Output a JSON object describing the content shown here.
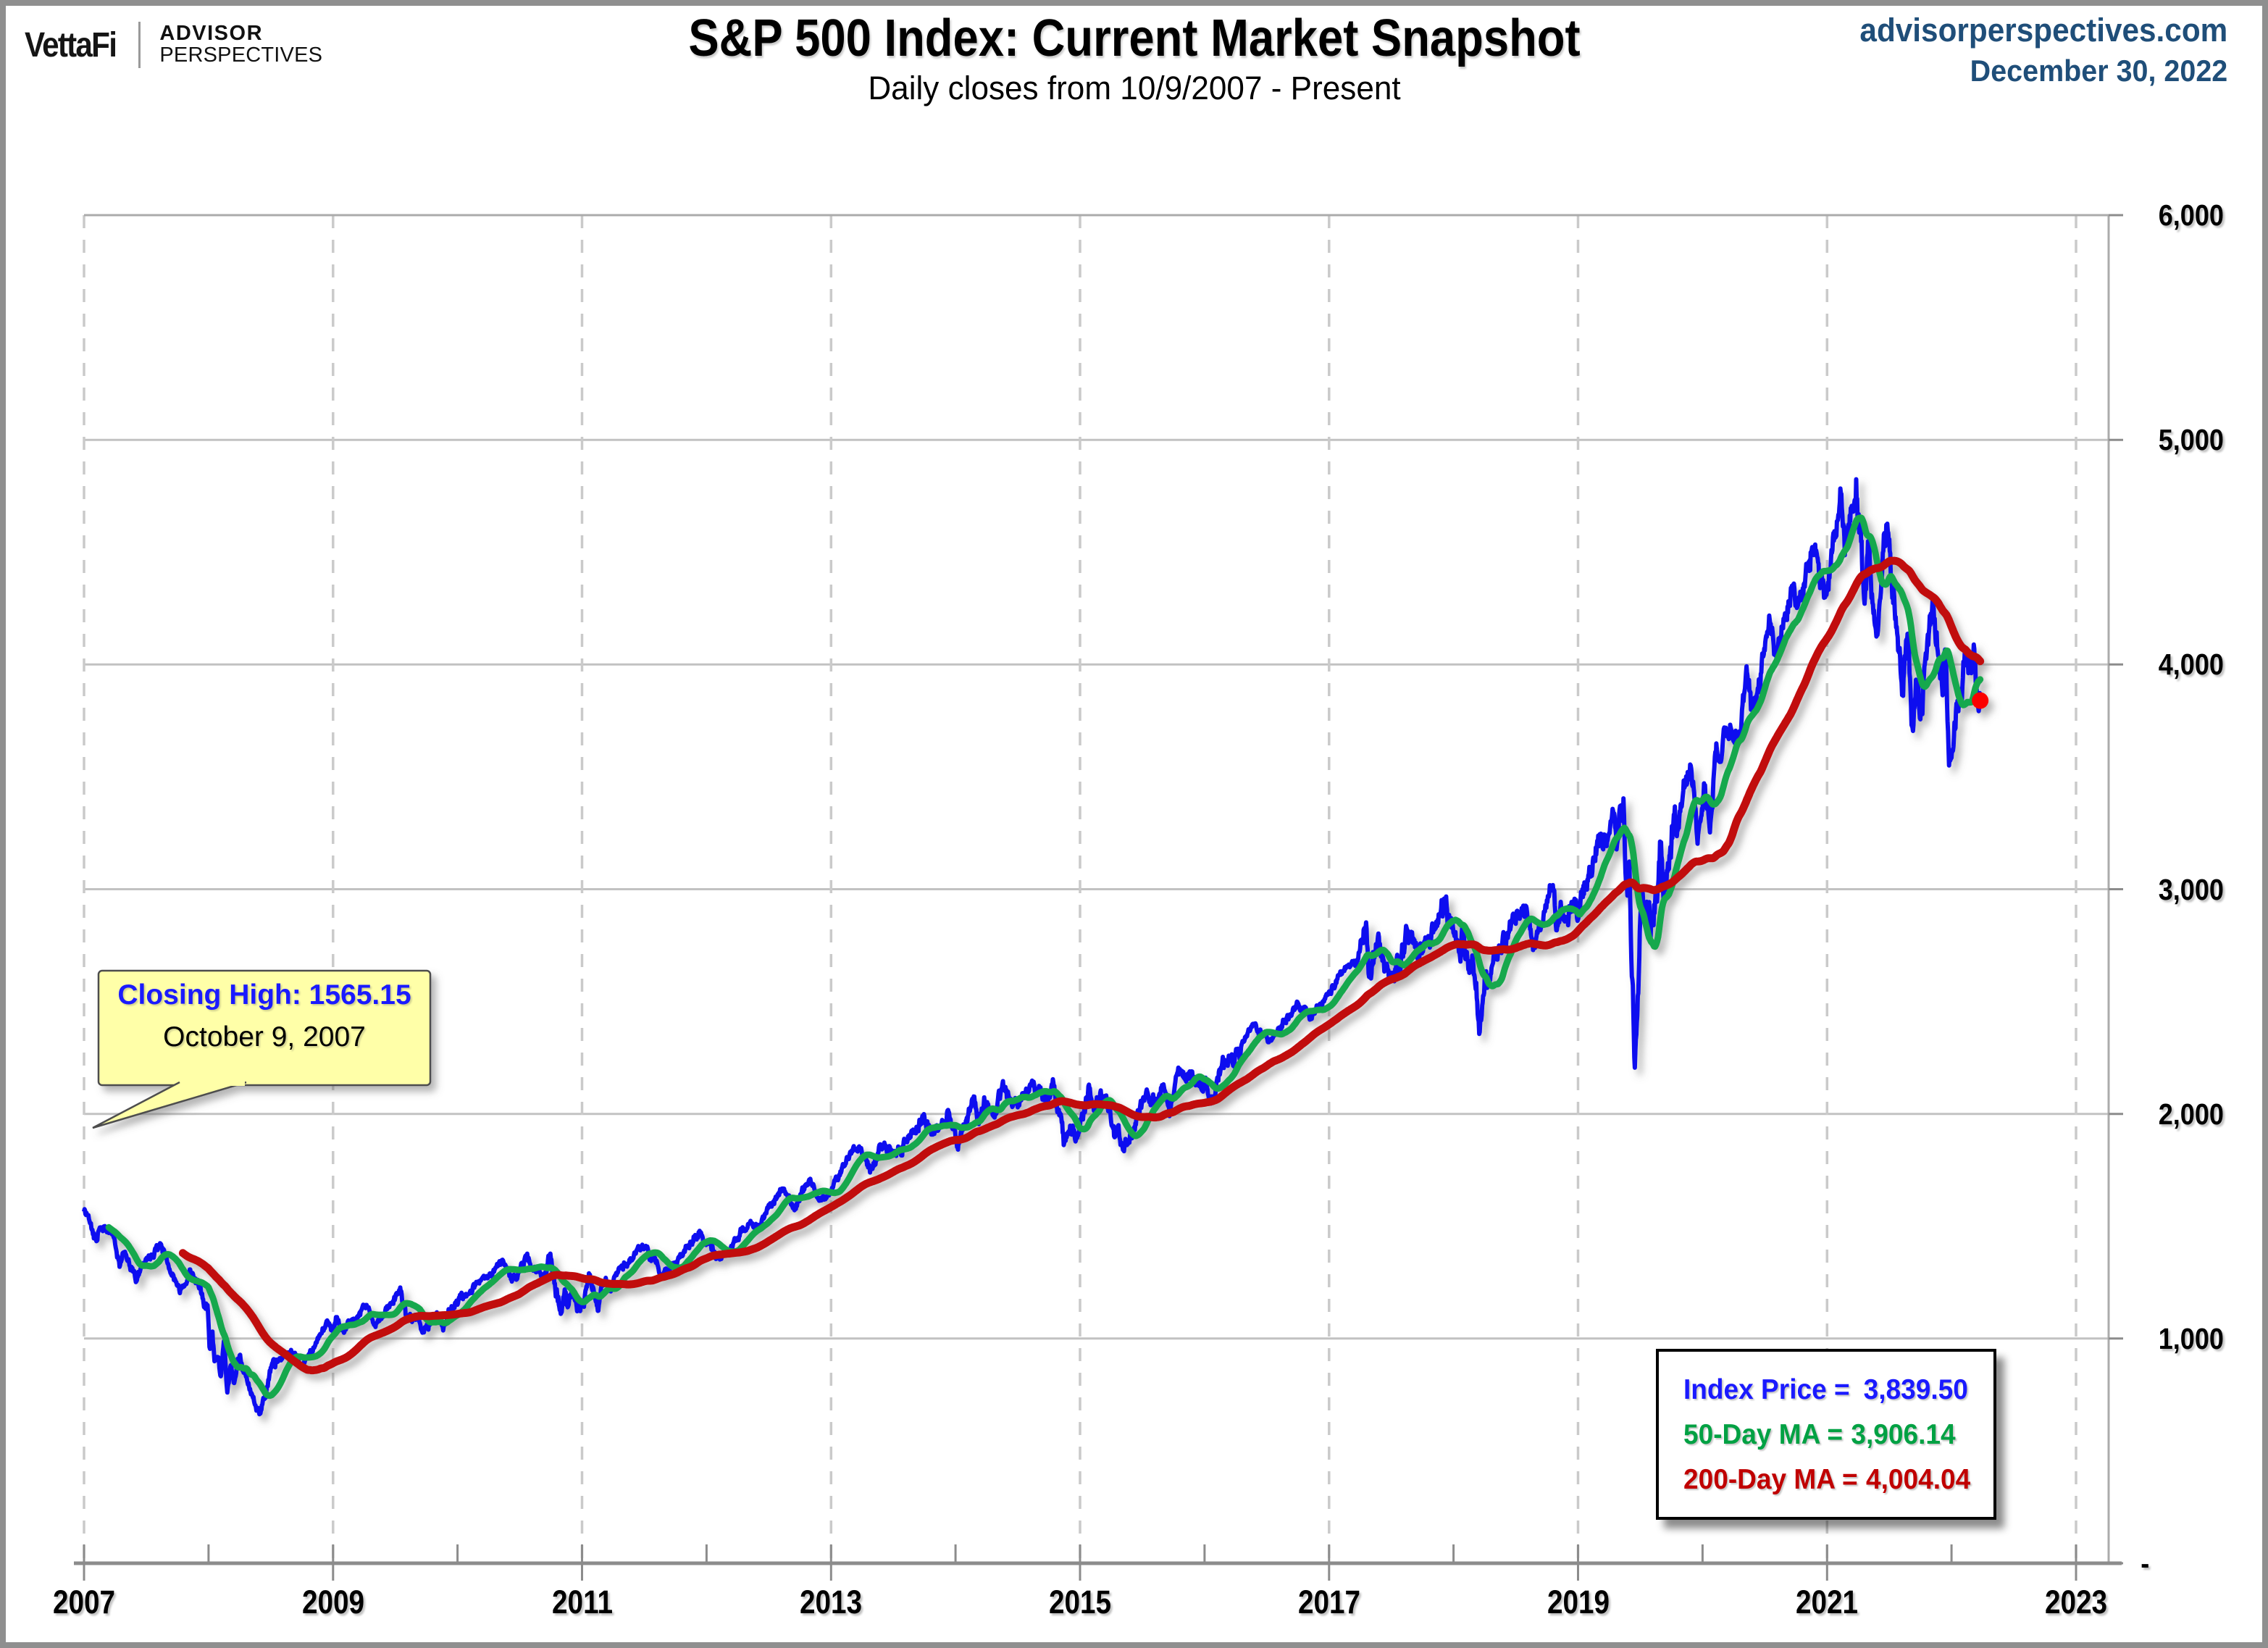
{
  "branding": {
    "vettafi": "VettaFi",
    "advisor": "ADVISOR",
    "perspectives": "PERSPECTIVES"
  },
  "header": {
    "title": "S&P 500 Index: Current Market Snapshot",
    "subtitle": "Daily closes from 10/9/2007 - Present"
  },
  "source": {
    "site": "advisorperspectives.com",
    "date": "December 30, 2022",
    "color": "#1F4E79"
  },
  "callout": {
    "line1": "Closing High: 1565.15",
    "line2": "October 9, 2007",
    "bg": "#FFFFA8",
    "accent": "#1A1AFF"
  },
  "legend": {
    "items": [
      {
        "label": "Index Price =",
        "value": "3,839.50",
        "color": "#1A1AFF"
      },
      {
        "label": "50-Day MA =",
        "value": "3,906.14",
        "color": "#00A143"
      },
      {
        "label": "200-Day MA =",
        "value": "4,004.04",
        "color": "#C00000"
      }
    ]
  },
  "chart_data": {
    "type": "line",
    "title": "S&P 500 Index: Current Market Snapshot",
    "subtitle": "Daily closes from 10/9/2007 - Present",
    "grid": true,
    "legend_position": "bottom-right",
    "ylim": [
      0,
      6000
    ],
    "x_axis": {
      "ticks": [
        "2007",
        "2009",
        "2011",
        "2013",
        "2015",
        "2017",
        "2019",
        "2021",
        "2023"
      ],
      "start_date": "10/9/2007"
    },
    "y_axis": {
      "ticks": [
        {
          "label": "-",
          "value": 0
        },
        {
          "label": "1,000",
          "value": 1000
        },
        {
          "label": "2,000",
          "value": 2000
        },
        {
          "label": "3,000",
          "value": 3000
        },
        {
          "label": "4,000",
          "value": 4000
        },
        {
          "label": "5,000",
          "value": 5000
        },
        {
          "label": "6,000",
          "value": 6000
        }
      ]
    },
    "series": [
      {
        "name": "Index Price",
        "color": "#0D0DEF",
        "width": 6,
        "anchors": [
          [
            0,
            1565
          ],
          [
            0.06,
            1490
          ],
          [
            0.1,
            1433
          ],
          [
            0.13,
            1515
          ],
          [
            0.23,
            1468
          ],
          [
            0.29,
            1310
          ],
          [
            0.32,
            1395
          ],
          [
            0.42,
            1273
          ],
          [
            0.61,
            1426
          ],
          [
            0.77,
            1215
          ],
          [
            0.85,
            1298
          ],
          [
            0.93,
            1252
          ],
          [
            0.975,
            1106
          ],
          [
            0.99,
            1161
          ],
          [
            1.01,
            899
          ],
          [
            1.03,
            1003
          ],
          [
            1.05,
            897
          ],
          [
            1.07,
            955
          ],
          [
            1.1,
            848
          ],
          [
            1.125,
            1005
          ],
          [
            1.15,
            752
          ],
          [
            1.18,
            887
          ],
          [
            1.205,
            816
          ],
          [
            1.23,
            903
          ],
          [
            1.25,
            932
          ],
          [
            1.31,
            805
          ],
          [
            1.36,
            735
          ],
          [
            1.385,
            700
          ],
          [
            1.415,
            677
          ],
          [
            1.5,
            856
          ],
          [
            1.6,
            920
          ],
          [
            1.67,
            946
          ],
          [
            1.75,
            879
          ],
          [
            1.95,
            1071
          ],
          [
            1.99,
            1025
          ],
          [
            2.03,
            1093
          ],
          [
            2.07,
            1036
          ],
          [
            2.23,
            1115
          ],
          [
            2.28,
            1150
          ],
          [
            2.33,
            1057
          ],
          [
            2.54,
            1217
          ],
          [
            2.6,
            1071
          ],
          [
            2.65,
            1103
          ],
          [
            2.73,
            1023
          ],
          [
            2.83,
            1127
          ],
          [
            2.885,
            1047
          ],
          [
            2.98,
            1147
          ],
          [
            3.15,
            1241
          ],
          [
            3.23,
            1258
          ],
          [
            3.36,
            1343
          ],
          [
            3.435,
            1257
          ],
          [
            3.56,
            1364
          ],
          [
            3.68,
            1265
          ],
          [
            3.74,
            1354
          ],
          [
            3.83,
            1119
          ],
          [
            3.86,
            1193
          ],
          [
            3.885,
            1124
          ],
          [
            3.93,
            1216
          ],
          [
            3.985,
            1099
          ],
          [
            4.06,
            1285
          ],
          [
            4.13,
            1158
          ],
          [
            4.16,
            1247
          ],
          [
            4.23,
            1258
          ],
          [
            4.49,
            1419
          ],
          [
            4.56,
            1358
          ],
          [
            4.65,
            1278
          ],
          [
            4.78,
            1363
          ],
          [
            4.94,
            1466
          ],
          [
            5.11,
            1353
          ],
          [
            5.23,
            1426
          ],
          [
            5.34,
            1520
          ],
          [
            5.39,
            1488
          ],
          [
            5.62,
            1669
          ],
          [
            5.71,
            1573
          ],
          [
            5.82,
            1710
          ],
          [
            5.89,
            1630
          ],
          [
            6.0,
            1655
          ],
          [
            6.13,
            1805
          ],
          [
            6.23,
            1848
          ],
          [
            6.32,
            1742
          ],
          [
            6.41,
            1878
          ],
          [
            6.51,
            1815
          ],
          [
            6.73,
            1985
          ],
          [
            6.83,
            1909
          ],
          [
            6.945,
            2011
          ],
          [
            7.02,
            1862
          ],
          [
            7.15,
            2075
          ],
          [
            7.185,
            1973
          ],
          [
            7.23,
            2059
          ],
          [
            7.32,
            1992
          ],
          [
            7.38,
            2117
          ],
          [
            7.46,
            2040
          ],
          [
            7.615,
            2131
          ],
          [
            7.75,
            2077
          ],
          [
            7.78,
            2128
          ],
          [
            7.875,
            1868
          ],
          [
            7.92,
            1952
          ],
          [
            7.97,
            1882
          ],
          [
            8.07,
            2109
          ],
          [
            8.105,
            2021
          ],
          [
            8.18,
            2078
          ],
          [
            8.23,
            2044
          ],
          [
            8.28,
            1859
          ],
          [
            8.31,
            1940
          ],
          [
            8.345,
            1829
          ],
          [
            8.53,
            2091
          ],
          [
            8.61,
            2040
          ],
          [
            8.67,
            2119
          ],
          [
            8.72,
            2001
          ],
          [
            8.78,
            2164
          ],
          [
            8.85,
            2190
          ],
          [
            8.93,
            2151
          ],
          [
            9.075,
            2085
          ],
          [
            9.18,
            2262
          ],
          [
            9.23,
            2239
          ],
          [
            9.395,
            2396
          ],
          [
            9.51,
            2329
          ],
          [
            9.67,
            2432
          ],
          [
            9.75,
            2480
          ],
          [
            9.86,
            2426
          ],
          [
            9.98,
            2519
          ],
          [
            10.13,
            2648
          ],
          [
            10.23,
            2674
          ],
          [
            10.3,
            2873
          ],
          [
            10.335,
            2581
          ],
          [
            10.38,
            2780
          ],
          [
            10.48,
            2581
          ],
          [
            10.56,
            2670
          ],
          [
            10.67,
            2782
          ],
          [
            10.72,
            2700
          ],
          [
            10.95,
            2931
          ],
          [
            11.01,
            2728
          ],
          [
            11.055,
            2641
          ],
          [
            11.08,
            2813
          ],
          [
            11.12,
            2633
          ],
          [
            11.15,
            2790
          ],
          [
            11.21,
            2351
          ],
          [
            11.23,
            2507
          ],
          [
            11.35,
            2708
          ],
          [
            11.56,
            2946
          ],
          [
            11.65,
            2752
          ],
          [
            11.8,
            3026
          ],
          [
            11.825,
            2845
          ],
          [
            11.86,
            2924
          ],
          [
            11.875,
            2847
          ],
          [
            11.98,
            2977
          ],
          [
            11.995,
            2888
          ],
          [
            12.18,
            3240
          ],
          [
            12.23,
            3231
          ],
          [
            12.275,
            3330
          ],
          [
            12.31,
            3226
          ],
          [
            12.365,
            3386
          ],
          [
            12.39,
            2954
          ],
          [
            12.41,
            3130
          ],
          [
            12.455,
            2237
          ],
          [
            12.5,
            2790
          ],
          [
            12.56,
            2940
          ],
          [
            12.6,
            2820
          ],
          [
            12.67,
            3232
          ],
          [
            12.685,
            3002
          ],
          [
            12.73,
            3130
          ],
          [
            12.9,
            3580
          ],
          [
            12.96,
            3237
          ],
          [
            13.015,
            3477
          ],
          [
            13.06,
            3270
          ],
          [
            13.1,
            3585
          ],
          [
            13.23,
            3756
          ],
          [
            13.31,
            3714
          ],
          [
            13.35,
            3935
          ],
          [
            13.4,
            3768
          ],
          [
            13.53,
            4185
          ],
          [
            13.59,
            4063
          ],
          [
            13.73,
            4352
          ],
          [
            13.775,
            4258
          ],
          [
            13.9,
            4537
          ],
          [
            13.985,
            4300
          ],
          [
            14.11,
            4701
          ],
          [
            14.15,
            4513
          ],
          [
            14.225,
            4766
          ],
          [
            14.235,
            4797
          ],
          [
            14.3,
            4326
          ],
          [
            14.33,
            4589
          ],
          [
            14.38,
            4226
          ],
          [
            14.415,
            4171
          ],
          [
            14.47,
            4631
          ],
          [
            14.56,
            4131
          ],
          [
            14.61,
            3901
          ],
          [
            14.645,
            4158
          ],
          [
            14.69,
            3667
          ],
          [
            14.72,
            3912
          ],
          [
            14.75,
            3785
          ],
          [
            14.85,
            4305
          ],
          [
            14.93,
            3908
          ],
          [
            14.95,
            4110
          ],
          [
            14.98,
            3586
          ],
          [
            15.015,
            3577
          ],
          [
            15.03,
            3678
          ],
          [
            15.06,
            3871
          ],
          [
            15.15,
            4080
          ],
          [
            15.165,
            3941
          ],
          [
            15.185,
            4019
          ],
          [
            15.21,
            3822
          ],
          [
            15.23,
            3839.5
          ]
        ]
      },
      {
        "name": "50-Day MA",
        "color": "#12A84E",
        "width": 9,
        "ma_window": 50
      },
      {
        "name": "200-Day MA",
        "color": "#C1070E",
        "width": 11,
        "ma_window": 200
      }
    ],
    "end_point": {
      "value": 3839.5,
      "color": "#FB0000"
    },
    "final_values": {
      "index_price": "3,839.50",
      "ma_50": "3,906.14",
      "ma_200": "4,004.04"
    },
    "volatility_periods": [
      [
        0.85,
        1.55,
        2.0
      ],
      [
        2.45,
        3.05,
        1.4
      ],
      [
        3.7,
        4.25,
        1.8
      ],
      [
        5.3,
        6.25,
        0.7
      ],
      [
        7.8,
        8.5,
        1.45
      ],
      [
        9.3,
        10.25,
        0.5
      ],
      [
        10.28,
        10.62,
        1.6
      ],
      [
        10.9,
        11.28,
        1.7
      ],
      [
        12.3,
        12.8,
        2.1
      ],
      [
        14.23,
        15.23,
        1.35
      ]
    ]
  }
}
